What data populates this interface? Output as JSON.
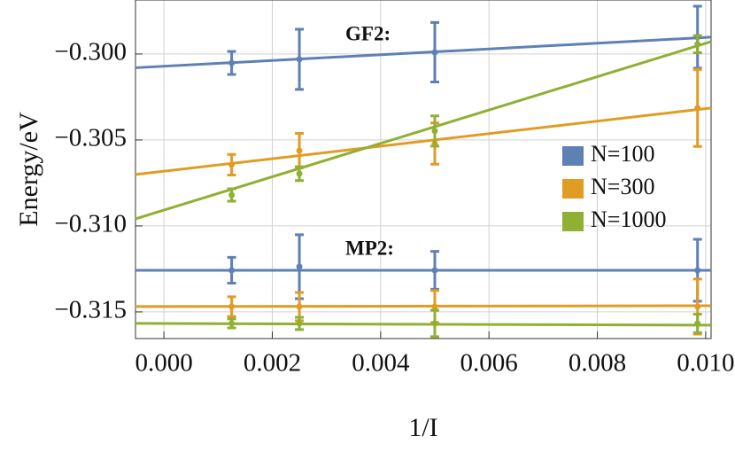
{
  "chart_data": {
    "type": "errorbar",
    "xlabel": "1/I",
    "ylabel": "Energy/eV",
    "annotations": [
      "GF2:",
      "MP2:"
    ],
    "x": [
      0.00125,
      0.0025,
      0.005,
      0.00985
    ],
    "xlim": [
      -0.000525,
      0.0101
    ],
    "ylim": [
      -0.31655,
      -0.29686
    ],
    "xticks": [
      {
        "value": 0,
        "label": "0.000"
      },
      {
        "value": 0.002,
        "label": "0.002"
      },
      {
        "value": 0.004,
        "label": "0.004"
      },
      {
        "value": 0.006,
        "label": "0.006"
      },
      {
        "value": 0.008,
        "label": "0.008"
      },
      {
        "value": 0.01,
        "label": "0.010"
      }
    ],
    "yticks": [
      {
        "value": -0.3,
        "label": "−0.300"
      },
      {
        "value": -0.305,
        "label": "−0.305"
      },
      {
        "value": -0.31,
        "label": "−0.310"
      },
      {
        "value": -0.315,
        "label": "−0.315"
      }
    ],
    "grid": true,
    "legend": "right",
    "series": [
      {
        "name": "N=100",
        "color": "#5e81b5",
        "gf2_values": [
          -0.30052,
          -0.30031,
          -0.2999,
          -0.29902
        ],
        "gf2_errors": [
          0.00067,
          0.00175,
          0.00173,
          0.0018
        ],
        "gf2_fit": [
          -0.3008,
          -0.29902
        ],
        "mp2_values": [
          -0.31258,
          -0.31237,
          -0.31258,
          -0.31258
        ],
        "mp2_errors": [
          0.00075,
          0.00186,
          0.0011,
          0.0018
        ],
        "mp2_fit": [
          -0.31258,
          -0.31258
        ]
      },
      {
        "name": "N=300",
        "color": "#e19c24",
        "gf2_values": [
          -0.30644,
          -0.30562,
          -0.30521,
          -0.30314
        ],
        "gf2_errors": [
          0.0006,
          0.001,
          0.0012,
          0.00224
        ],
        "gf2_fit": [
          -0.30701,
          -0.30314
        ],
        "mp2_values": [
          -0.31469,
          -0.31469,
          -0.31469,
          -0.31469
        ],
        "mp2_errors": [
          0.00057,
          0.00082,
          0.00093,
          0.0016
        ],
        "mp2_fit": [
          -0.31469,
          -0.31464
        ]
      },
      {
        "name": "N=1000",
        "color": "#8fb032",
        "gf2_values": [
          -0.3082,
          -0.30696,
          -0.30448,
          -0.29943
        ],
        "gf2_errors": [
          0.00036,
          0.0004,
          0.00088,
          0.0005
        ],
        "gf2_fit": [
          -0.30959,
          -0.29928
        ],
        "mp2_values": [
          -0.31567,
          -0.31567,
          -0.31567,
          -0.31567
        ],
        "mp2_errors": [
          0.00026,
          0.00036,
          0.00077,
          0.00054
        ],
        "mp2_fit": [
          -0.31567,
          -0.31577
        ]
      }
    ]
  }
}
